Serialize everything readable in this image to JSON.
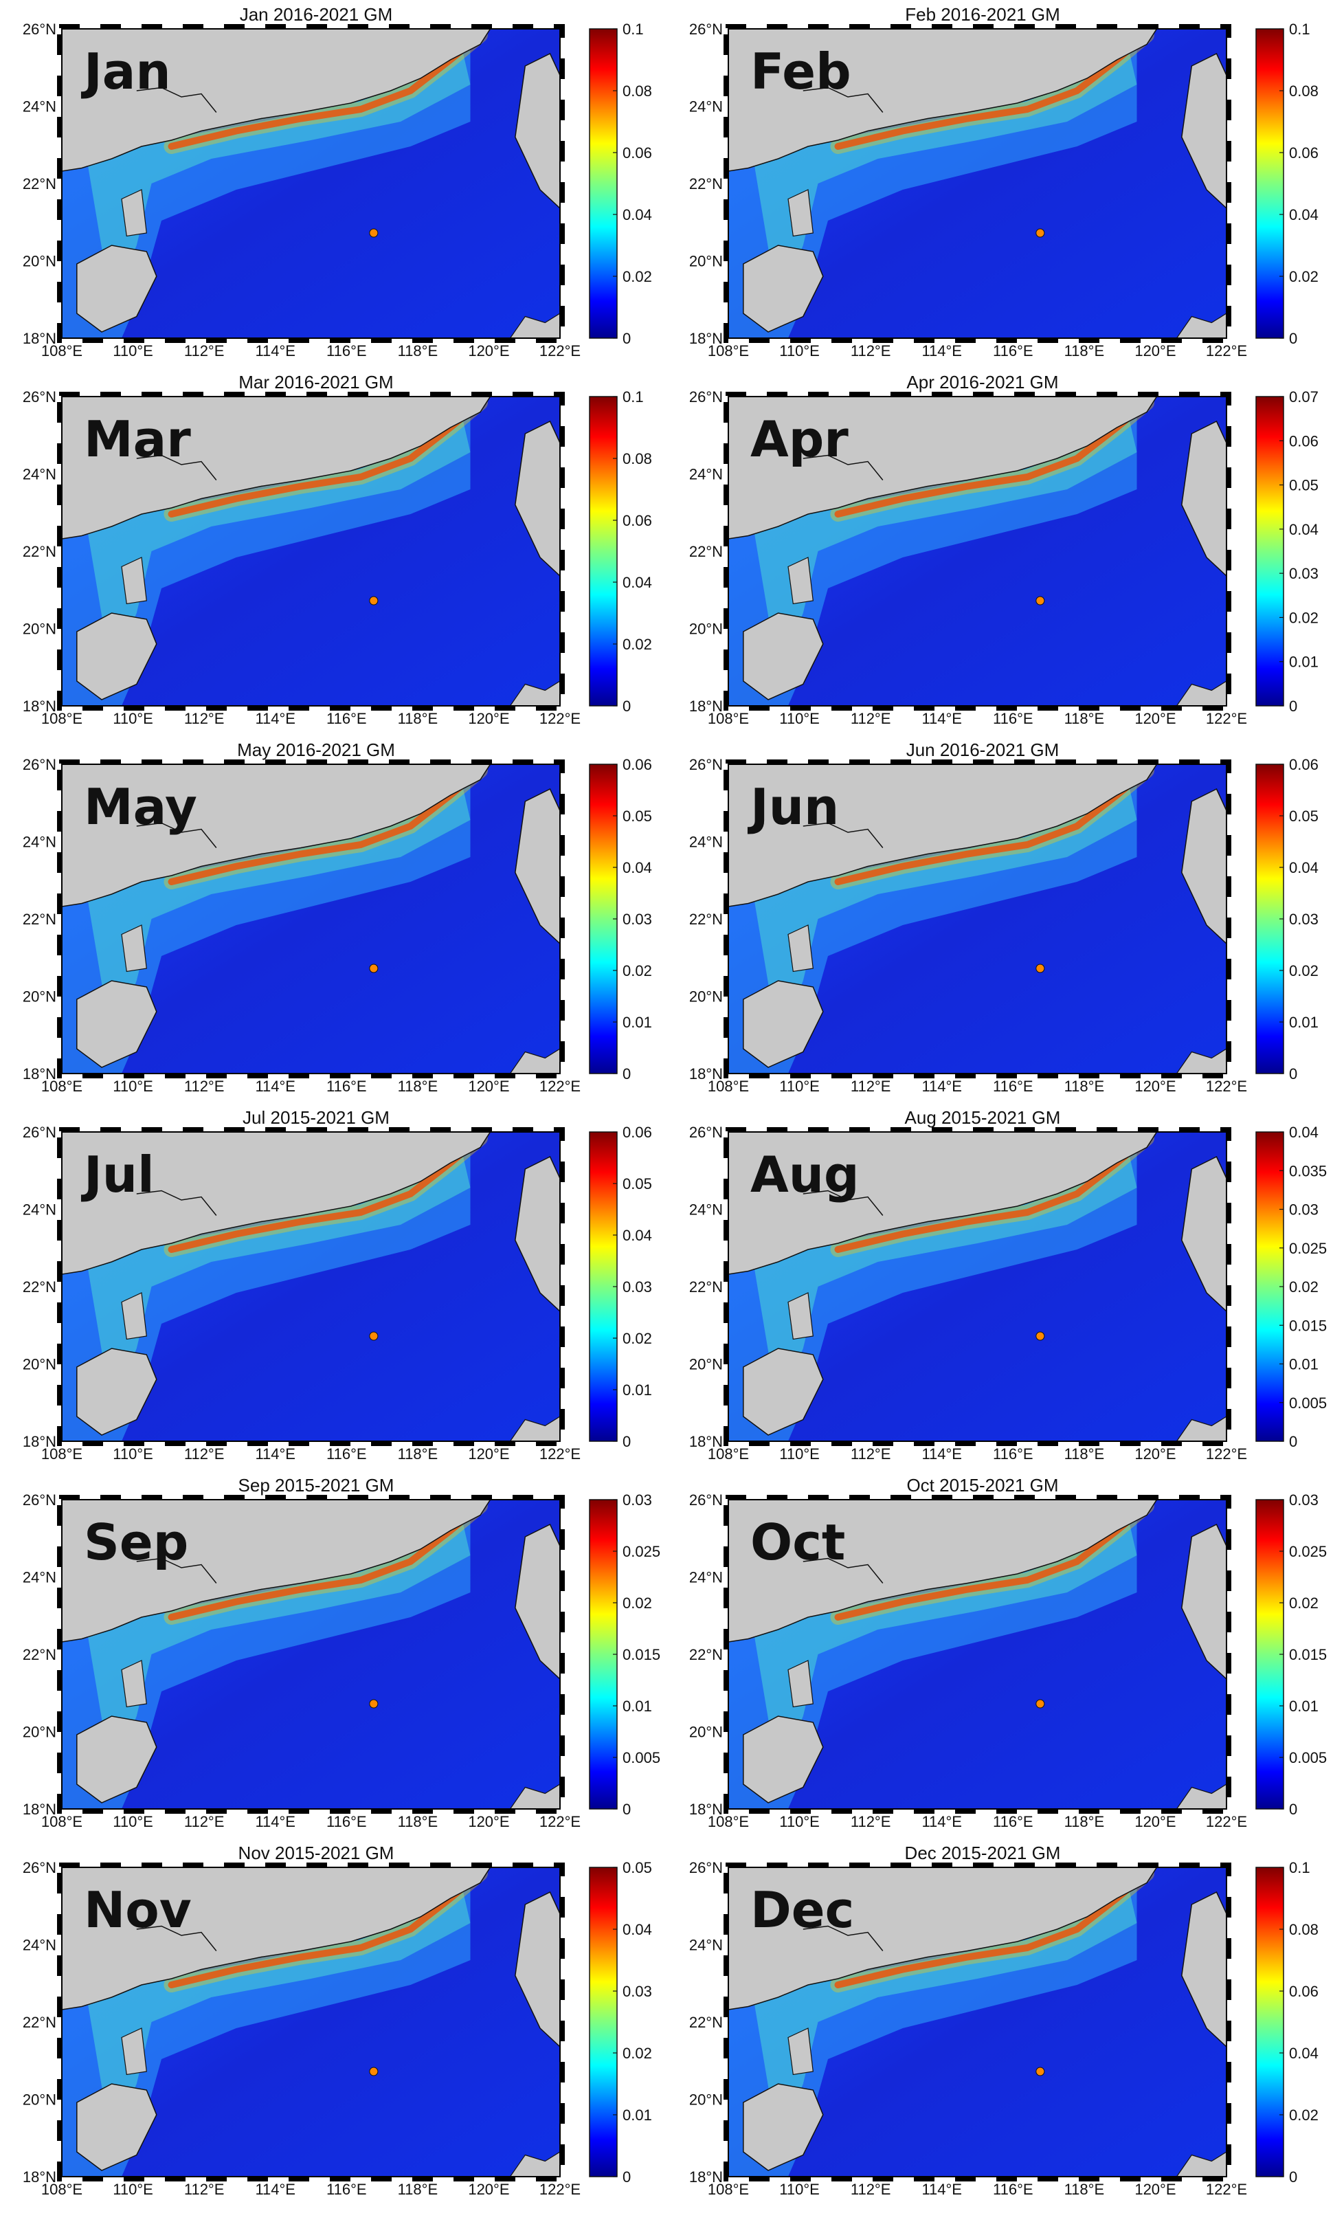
{
  "figure": {
    "lat_ticks": [
      "18°N",
      "20°N",
      "22°N",
      "24°N",
      "26°N"
    ],
    "lon_ticks": [
      "108°E",
      "110°E",
      "112°E",
      "114°E",
      "116°E",
      "118°E",
      "120°E",
      "122°E"
    ],
    "colormap": "jet",
    "land_color": "#c8c8c8",
    "panels": [
      {
        "month": "Jan",
        "title": "Jan 2016-2021 GM",
        "cbar_max": 0.1,
        "cbar_ticks": [
          "0",
          "0.02",
          "0.04",
          "0.06",
          "0.08",
          "0.1"
        ]
      },
      {
        "month": "Feb",
        "title": "Feb 2016-2021 GM",
        "cbar_max": 0.1,
        "cbar_ticks": [
          "0",
          "0.02",
          "0.04",
          "0.06",
          "0.08",
          "0.1"
        ]
      },
      {
        "month": "Mar",
        "title": "Mar 2016-2021 GM",
        "cbar_max": 0.1,
        "cbar_ticks": [
          "0",
          "0.02",
          "0.04",
          "0.06",
          "0.08",
          "0.1"
        ]
      },
      {
        "month": "Apr",
        "title": "Apr 2016-2021 GM",
        "cbar_max": 0.07,
        "cbar_ticks": [
          "0",
          "0.01",
          "0.02",
          "0.03",
          "0.04",
          "0.05",
          "0.06",
          "0.07"
        ]
      },
      {
        "month": "May",
        "title": "May 2016-2021 GM",
        "cbar_max": 0.06,
        "cbar_ticks": [
          "0",
          "0.01",
          "0.02",
          "0.03",
          "0.04",
          "0.05",
          "0.06"
        ]
      },
      {
        "month": "Jun",
        "title": "Jun 2016-2021 GM",
        "cbar_max": 0.06,
        "cbar_ticks": [
          "0",
          "0.01",
          "0.02",
          "0.03",
          "0.04",
          "0.05",
          "0.06"
        ]
      },
      {
        "month": "Jul",
        "title": "Jul 2015-2021 GM",
        "cbar_max": 0.06,
        "cbar_ticks": [
          "0",
          "0.01",
          "0.02",
          "0.03",
          "0.04",
          "0.05",
          "0.06"
        ]
      },
      {
        "month": "Aug",
        "title": "Aug 2015-2021 GM",
        "cbar_max": 0.04,
        "cbar_ticks": [
          "0",
          "0.005",
          "0.01",
          "0.015",
          "0.02",
          "0.025",
          "0.03",
          "0.035",
          "0.04"
        ]
      },
      {
        "month": "Sep",
        "title": "Sep 2015-2021 GM",
        "cbar_max": 0.03,
        "cbar_ticks": [
          "0",
          "0.005",
          "0.01",
          "0.015",
          "0.02",
          "0.025",
          "0.03"
        ]
      },
      {
        "month": "Oct",
        "title": "Oct 2015-2021 GM",
        "cbar_max": 0.03,
        "cbar_ticks": [
          "0",
          "0.005",
          "0.01",
          "0.015",
          "0.02",
          "0.025",
          "0.03"
        ]
      },
      {
        "month": "Nov",
        "title": "Nov 2015-2021 GM",
        "cbar_max": 0.05,
        "cbar_ticks": [
          "0",
          "0.01",
          "0.02",
          "0.03",
          "0.04",
          "0.05"
        ]
      },
      {
        "month": "Dec",
        "title": "Dec 2015-2021 GM",
        "cbar_max": 0.1,
        "cbar_ticks": [
          "0",
          "0.02",
          "0.04",
          "0.06",
          "0.08",
          "0.1"
        ]
      }
    ]
  }
}
